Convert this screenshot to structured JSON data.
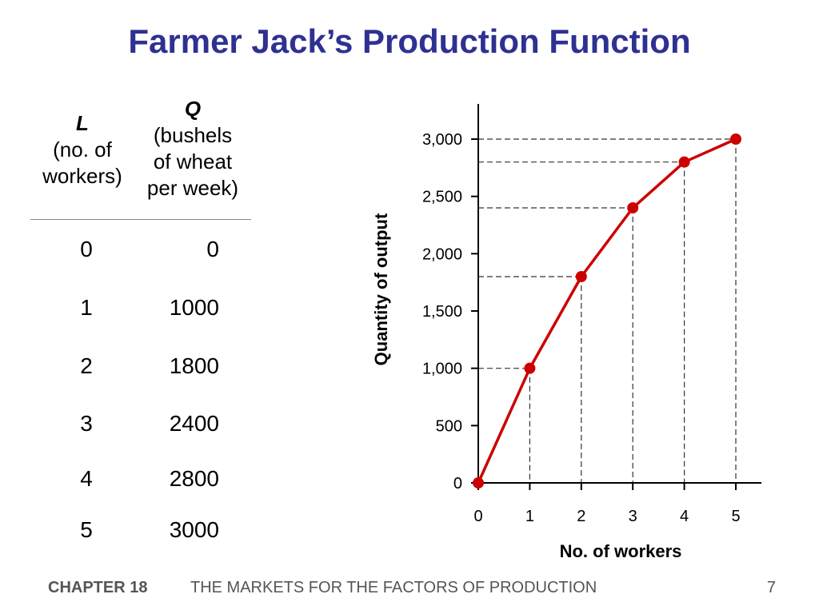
{
  "slide": {
    "title": "Farmer Jack’s Production Function",
    "footer": {
      "chapter": "CHAPTER 18",
      "subject": "THE MARKETS FOR THE FACTORS OF PRODUCTION",
      "page": "7"
    }
  },
  "table": {
    "headers": {
      "L": {
        "symbol": "L",
        "line1": "(no. of",
        "line2": "workers)"
      },
      "Q": {
        "symbol": "Q",
        "line1": "(bushels",
        "line2": "of wheat",
        "line3": "per week)"
      }
    },
    "rows": [
      {
        "L": "0",
        "Q": "0"
      },
      {
        "L": "1",
        "Q": "1000"
      },
      {
        "L": "2",
        "Q": "1800"
      },
      {
        "L": "3",
        "Q": "2400"
      },
      {
        "L": "4",
        "Q": "2800"
      },
      {
        "L": "5",
        "Q": "3000"
      }
    ]
  },
  "chart_data": {
    "type": "line",
    "x": [
      0,
      1,
      2,
      3,
      4,
      5
    ],
    "series": [
      {
        "values": [
          0,
          1000,
          1800,
          2400,
          2800,
          3000
        ]
      }
    ],
    "xlabel": "No. of workers",
    "ylabel": "Quantity of output",
    "xlim": [
      0,
      5
    ],
    "ylim": [
      0,
      3000
    ],
    "x_ticks": [
      "0",
      "1",
      "2",
      "3",
      "4",
      "5"
    ],
    "y_ticks": [
      "0",
      "500",
      "1,000",
      "1,500",
      "2,000",
      "2,500",
      "3,000"
    ],
    "y_tick_values": [
      0,
      500,
      1000,
      1500,
      2000,
      2500,
      3000
    ],
    "grid": false,
    "dashed_guides": true,
    "line_color": "#cc0000",
    "marker_color": "#cc0000",
    "guide_color": "#333333"
  }
}
